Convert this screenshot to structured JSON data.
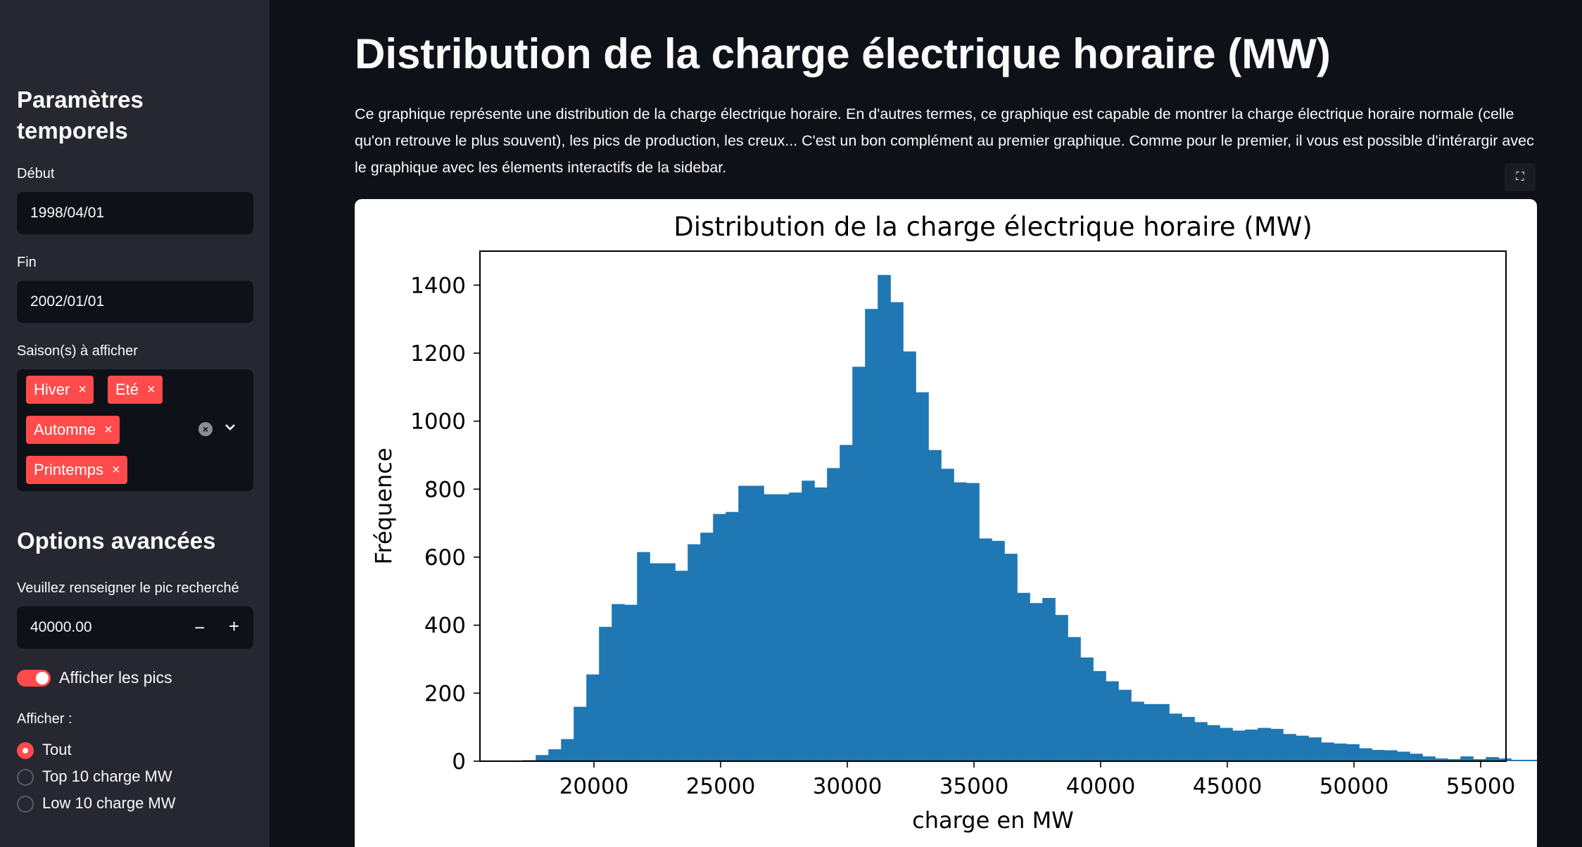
{
  "sidebar": {
    "temporal_title": "Paramètres temporels",
    "start_label": "Début",
    "start_value": "1998/04/01",
    "end_label": "Fin",
    "end_value": "2002/01/01",
    "seasons_label": "Saison(s) à afficher",
    "seasons": [
      "Hiver",
      "Eté",
      "Automne",
      "Printemps"
    ],
    "tag_remove_glyph": "×",
    "clear_glyph": "×",
    "chevron_glyph": "⌄",
    "advanced_title": "Options avancées",
    "peak_label": "Veuillez renseigner le pic recherché",
    "peak_value": "40000.00",
    "minus_glyph": "−",
    "plus_glyph": "+",
    "toggle_label": "Afficher les pics",
    "toggle_on": true,
    "display_label": "Afficher :",
    "display_options": [
      "Tout",
      "Top 10 charge MW",
      "Low 10 charge MW"
    ],
    "display_selected": 0
  },
  "main": {
    "title": "Distribution de la charge électrique horaire (MW)",
    "description": "Ce graphique représente une distribution de la charge électrique horaire. En d'autres termes, ce graphique est capable de montrer la charge électrique horaire normale (celle qu'on retrouve le plus souvent), les pics de production, les creux... C'est un bon complément au premier graphique. Comme pour le premier, il vous est possible d'intérargir avec le graphique avec les élements interactifs de la sidebar.",
    "expand_glyph": "⛶"
  },
  "chart_data": {
    "type": "bar",
    "title": "Distribution de la charge électrique horaire (MW)",
    "xlabel": "charge en MW",
    "ylabel": "Fréquence",
    "xlim": [
      15500,
      56000
    ],
    "ylim": [
      0,
      1500
    ],
    "x_ticks": [
      20000,
      25000,
      30000,
      35000,
      40000,
      45000,
      50000,
      55000
    ],
    "y_ticks": [
      0,
      200,
      400,
      600,
      800,
      1000,
      1200,
      1400
    ],
    "bar_color": "#1f77b4",
    "bin_start": 17200,
    "bin_width": 500,
    "values": [
      3,
      18,
      35,
      65,
      160,
      255,
      395,
      462,
      460,
      615,
      582,
      582,
      560,
      638,
      672,
      727,
      733,
      810,
      810,
      785,
      785,
      790,
      825,
      805,
      862,
      930,
      1160,
      1330,
      1430,
      1350,
      1205,
      1085,
      915,
      860,
      820,
      818,
      655,
      648,
      610,
      495,
      465,
      480,
      430,
      365,
      305,
      265,
      235,
      210,
      175,
      168,
      168,
      140,
      130,
      115,
      106,
      98,
      90,
      93,
      98,
      95,
      80,
      75,
      70,
      55,
      52,
      50,
      38,
      33,
      32,
      28,
      22,
      14,
      8,
      6,
      14,
      6,
      12,
      8,
      4,
      4,
      3,
      2,
      2,
      4,
      3
    ]
  }
}
